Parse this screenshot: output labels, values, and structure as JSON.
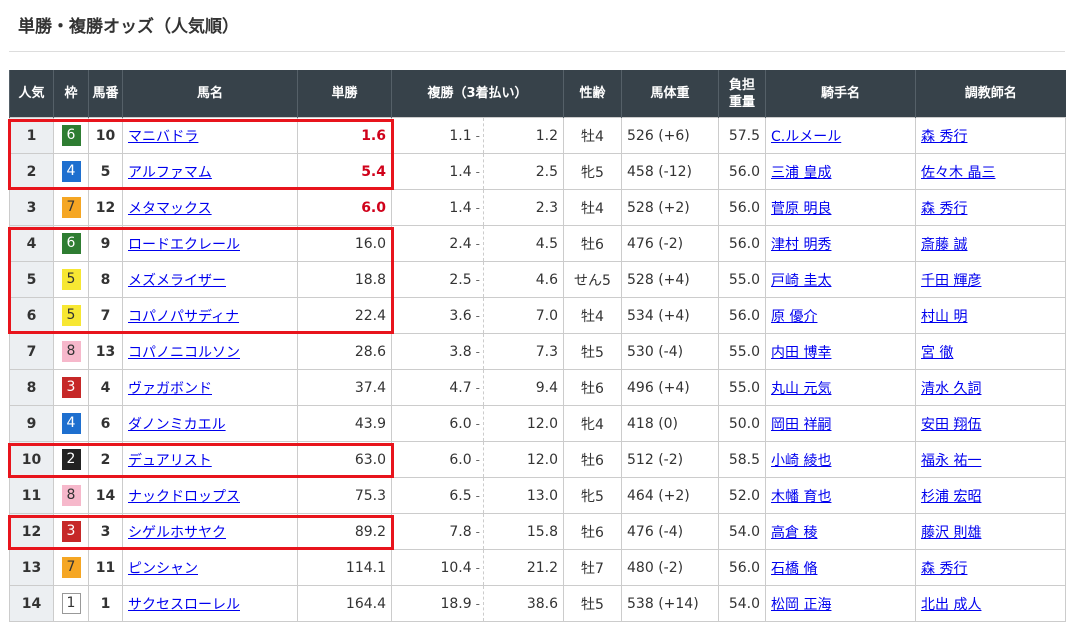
{
  "title": "単勝・複勝オッズ（人気順）",
  "headers": [
    "人気",
    "枠",
    "馬番",
    "馬名",
    "単勝",
    "複勝（3着払い）",
    "性齢",
    "馬体重",
    "負担重量",
    "騎手名",
    "調教師名"
  ],
  "colors": {
    "header_bg": "#37424a",
    "favorite_odds": "#d0021b",
    "highlight_border": "#e8141c",
    "link": "#0000ee"
  },
  "waku_colors": {
    "1": [
      "#ffffff",
      "#333"
    ],
    "2": [
      "#222222",
      "#fff"
    ],
    "3": [
      "#c62828",
      "#fff"
    ],
    "4": [
      "#1e6fcf",
      "#fff"
    ],
    "5": [
      "#f7e733",
      "#333"
    ],
    "6": [
      "#2e7d32",
      "#fff"
    ],
    "7": [
      "#f5a623",
      "#333"
    ],
    "8": [
      "#f6b8cb",
      "#333"
    ]
  },
  "highlight_groups": [
    [
      1,
      2
    ],
    [
      4,
      6
    ],
    [
      10,
      10
    ],
    [
      12,
      12
    ]
  ],
  "rows": [
    {
      "rank": "1",
      "waku": "6",
      "num": "10",
      "horse": "マニバドラ",
      "win": "1.6",
      "fav": true,
      "place_min": "1.1",
      "place_max": "1.2",
      "sex_age": "牡4",
      "weight": "526 (+6)",
      "burden": "57.5",
      "jockey": "C.ルメール",
      "trainer": "森 秀行"
    },
    {
      "rank": "2",
      "waku": "4",
      "num": "5",
      "horse": "アルファマム",
      "win": "5.4",
      "fav": true,
      "place_min": "1.4",
      "place_max": "2.5",
      "sex_age": "牝5",
      "weight": "458 (-12)",
      "burden": "56.0",
      "jockey": "三浦 皇成",
      "trainer": "佐々木 晶三"
    },
    {
      "rank": "3",
      "waku": "7",
      "num": "12",
      "horse": "メタマックス",
      "win": "6.0",
      "fav": true,
      "place_min": "1.4",
      "place_max": "2.3",
      "sex_age": "牡4",
      "weight": "528 (+2)",
      "burden": "56.0",
      "jockey": "菅原 明良",
      "trainer": "森 秀行"
    },
    {
      "rank": "4",
      "waku": "6",
      "num": "9",
      "horse": "ロードエクレール",
      "win": "16.0",
      "fav": false,
      "place_min": "2.4",
      "place_max": "4.5",
      "sex_age": "牡6",
      "weight": "476 (-2)",
      "burden": "56.0",
      "jockey": "津村 明秀",
      "trainer": "斎藤 誠"
    },
    {
      "rank": "5",
      "waku": "5",
      "num": "8",
      "horse": "メズメライザー",
      "win": "18.8",
      "fav": false,
      "place_min": "2.5",
      "place_max": "4.6",
      "sex_age": "せん5",
      "weight": "528 (+4)",
      "burden": "55.0",
      "jockey": "戸崎 圭太",
      "trainer": "千田 輝彦"
    },
    {
      "rank": "6",
      "waku": "5",
      "num": "7",
      "horse": "コパノパサディナ",
      "win": "22.4",
      "fav": false,
      "place_min": "3.6",
      "place_max": "7.0",
      "sex_age": "牡4",
      "weight": "534 (+4)",
      "burden": "56.0",
      "jockey": "原 優介",
      "trainer": "村山 明"
    },
    {
      "rank": "7",
      "waku": "8",
      "num": "13",
      "horse": "コパノニコルソン",
      "win": "28.6",
      "fav": false,
      "place_min": "3.8",
      "place_max": "7.3",
      "sex_age": "牡5",
      "weight": "530 (-4)",
      "burden": "55.0",
      "jockey": "内田 博幸",
      "trainer": "宮 徹"
    },
    {
      "rank": "8",
      "waku": "3",
      "num": "4",
      "horse": "ヴァガボンド",
      "win": "37.4",
      "fav": false,
      "place_min": "4.7",
      "place_max": "9.4",
      "sex_age": "牡6",
      "weight": "496 (+4)",
      "burden": "55.0",
      "jockey": "丸山 元気",
      "trainer": "清水 久詞"
    },
    {
      "rank": "9",
      "waku": "4",
      "num": "6",
      "horse": "ダノンミカエル",
      "win": "43.9",
      "fav": false,
      "place_min": "6.0",
      "place_max": "12.0",
      "sex_age": "牝4",
      "weight": "418 (0)",
      "burden": "50.0",
      "jockey": "岡田 祥嗣",
      "trainer": "安田 翔伍"
    },
    {
      "rank": "10",
      "waku": "2",
      "num": "2",
      "horse": "デュアリスト",
      "win": "63.0",
      "fav": false,
      "place_min": "6.0",
      "place_max": "12.0",
      "sex_age": "牡6",
      "weight": "512 (-2)",
      "burden": "58.5",
      "jockey": "小崎 綾也",
      "trainer": "福永 祐一"
    },
    {
      "rank": "11",
      "waku": "8",
      "num": "14",
      "horse": "ナックドロップス",
      "win": "75.3",
      "fav": false,
      "place_min": "6.5",
      "place_max": "13.0",
      "sex_age": "牝5",
      "weight": "464 (+2)",
      "burden": "52.0",
      "jockey": "木幡 育也",
      "trainer": "杉浦 宏昭"
    },
    {
      "rank": "12",
      "waku": "3",
      "num": "3",
      "horse": "シゲルホサヤク",
      "win": "89.2",
      "fav": false,
      "place_min": "7.8",
      "place_max": "15.8",
      "sex_age": "牡6",
      "weight": "476 (-4)",
      "burden": "54.0",
      "jockey": "高倉 稜",
      "trainer": "藤沢 則雄"
    },
    {
      "rank": "13",
      "waku": "7",
      "num": "11",
      "horse": "ピンシャン",
      "win": "114.1",
      "fav": false,
      "place_min": "10.4",
      "place_max": "21.2",
      "sex_age": "牡7",
      "weight": "480 (-2)",
      "burden": "56.0",
      "jockey": "石橋 脩",
      "trainer": "森 秀行"
    },
    {
      "rank": "14",
      "waku": "1",
      "num": "1",
      "horse": "サクセスローレル",
      "win": "164.4",
      "fav": false,
      "place_min": "18.9",
      "place_max": "38.6",
      "sex_age": "牡5",
      "weight": "538 (+14)",
      "burden": "54.0",
      "jockey": "松岡 正海",
      "trainer": "北出 成人"
    }
  ]
}
